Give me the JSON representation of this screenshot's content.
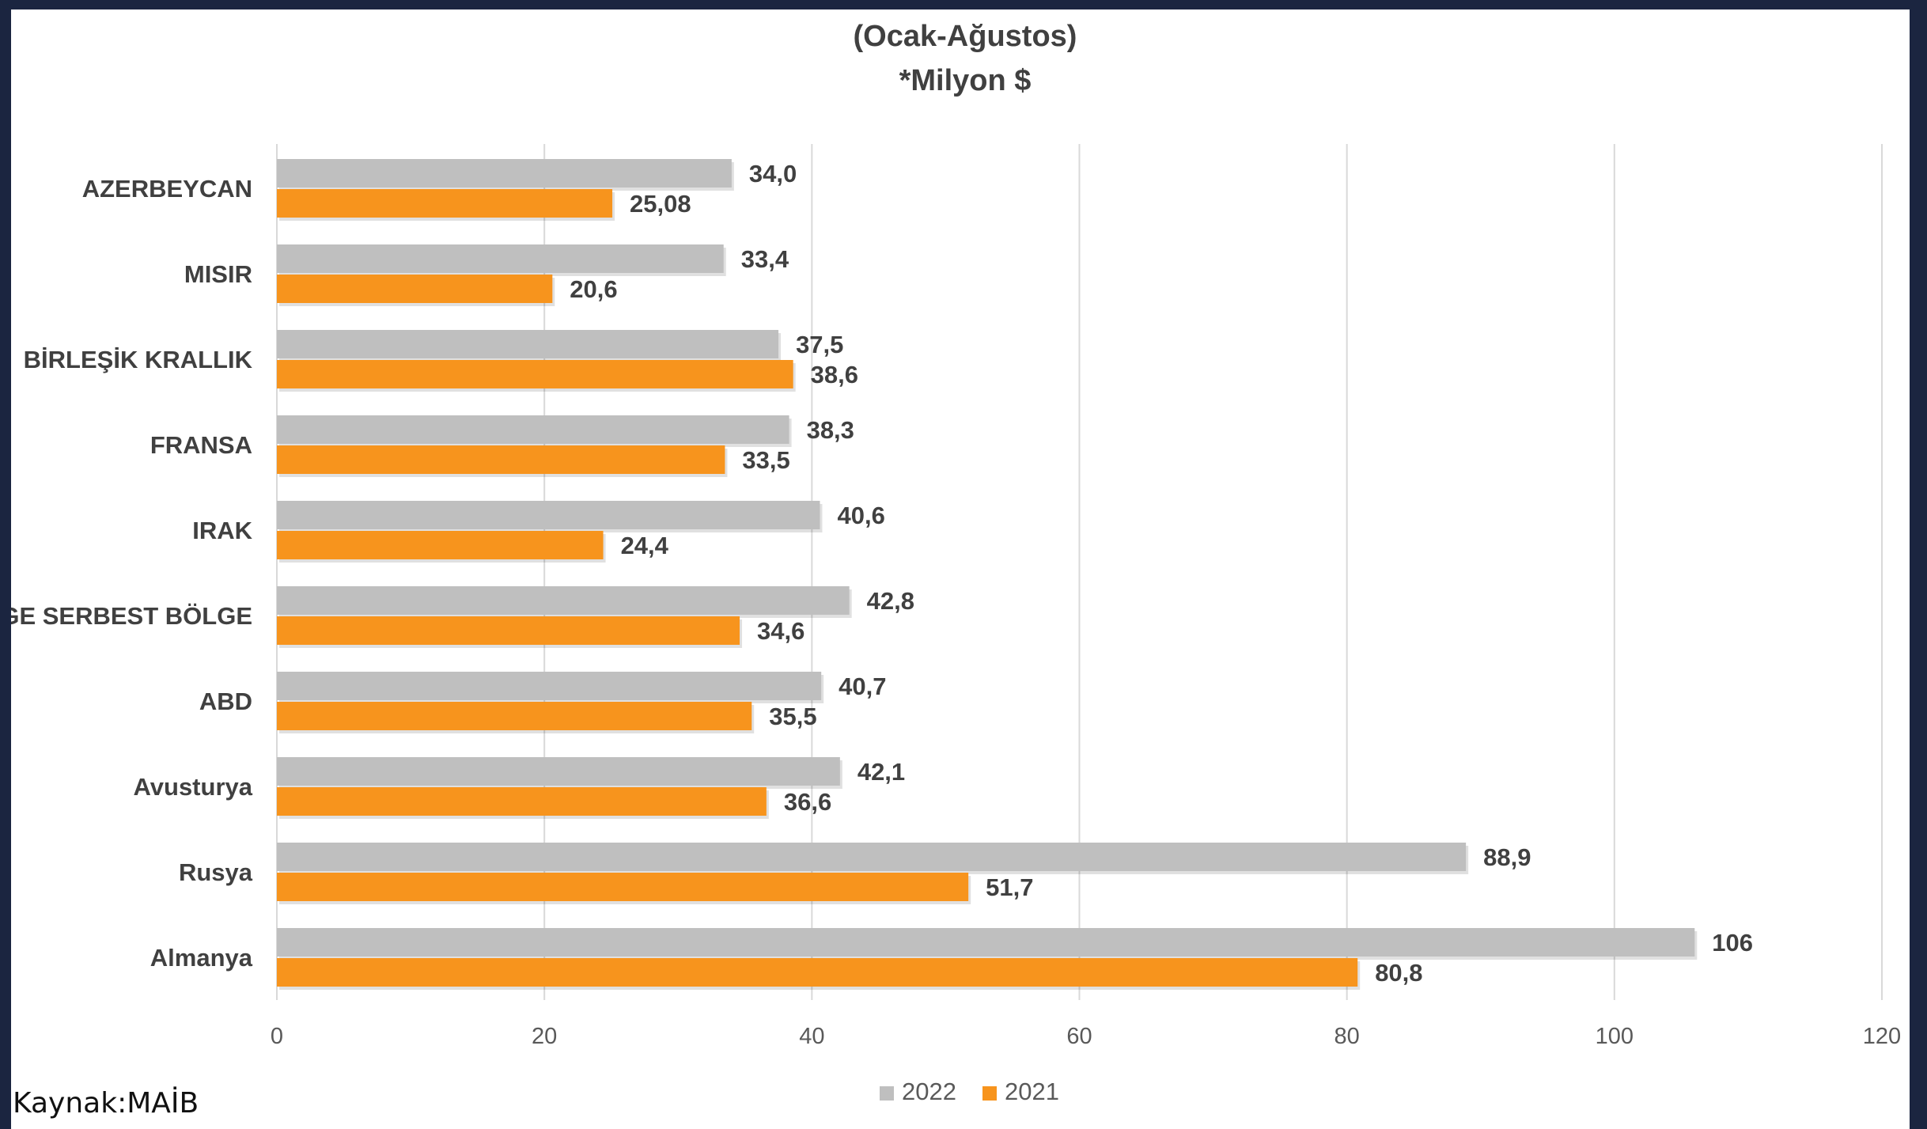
{
  "source": "Kaynak:MAİB",
  "chart_data": {
    "type": "bar",
    "orientation": "horizontal",
    "title": "(Ocak-Ağustos)",
    "subtitle": "*Milyon $",
    "categories": [
      "AZERBEYCAN",
      "MISIR",
      "BİRLEŞİK KRALLIK",
      "FRANSA",
      "IRAK",
      "EGE SERBEST BÖLGE",
      "ABD",
      "Avusturya",
      "Rusya",
      "Almanya"
    ],
    "series": [
      {
        "name": "2022",
        "color": "#bfbfbf",
        "values": [
          34.0,
          33.4,
          37.5,
          38.3,
          40.6,
          42.8,
          40.7,
          42.1,
          88.9,
          106
        ],
        "labels": [
          "34,0",
          "33,4",
          "37,5",
          "38,3",
          "40,6",
          "42,8",
          "40,7",
          "42,1",
          "88,9",
          "106"
        ]
      },
      {
        "name": "2021",
        "color": "#f7941d",
        "values": [
          25.08,
          20.6,
          38.6,
          33.5,
          24.4,
          34.6,
          35.5,
          36.6,
          51.7,
          80.8
        ],
        "labels": [
          "25,08",
          "20,6",
          "38,6",
          "33,5",
          "24,4",
          "34,6",
          "35,5",
          "36,6",
          "51,7",
          "80,8"
        ]
      }
    ],
    "xlim": [
      0,
      120
    ],
    "xticks": [
      "0",
      "20",
      "40",
      "60",
      "80",
      "100",
      "120"
    ],
    "grid": true,
    "legend_position": "bottom"
  }
}
